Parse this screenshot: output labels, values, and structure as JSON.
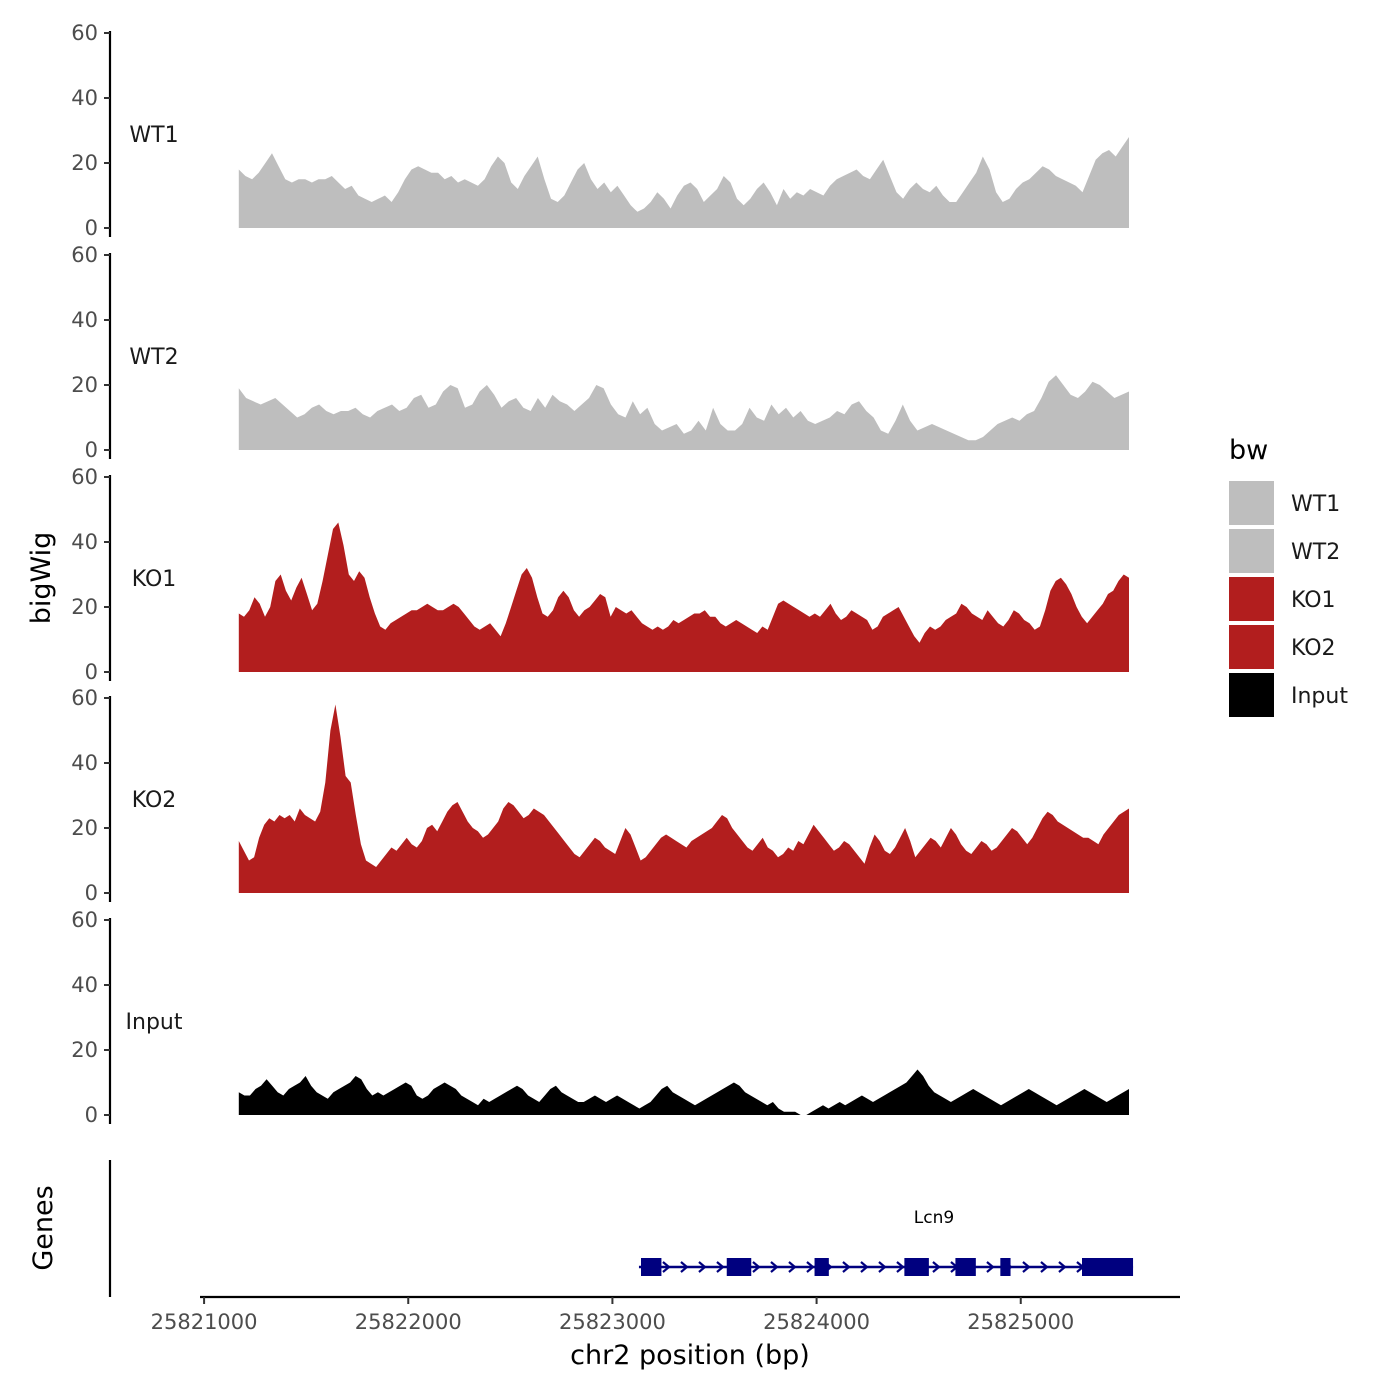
{
  "chart_data": {
    "type": "area",
    "xlabel": "chr2 position (bp)",
    "ylabel": "bigWig",
    "genes_label": "Genes",
    "xlim": [
      25820980,
      25825780
    ],
    "x_ticks": [
      25821000,
      25822000,
      25823000,
      25824000,
      25825000
    ],
    "x_tick_labels": [
      "25821000",
      "25822000",
      "25823000",
      "25824000",
      "25825000"
    ],
    "ylim": [
      0,
      60
    ],
    "y_ticks": [
      0,
      20,
      40,
      60
    ],
    "y_tick_labels": [
      "0",
      "20",
      "40",
      "60"
    ],
    "x_start": 25821170,
    "x_end": 25825530,
    "legend": {
      "title": "bw",
      "position": "right",
      "entries": [
        {
          "name": "WT1",
          "color": "#bebebe"
        },
        {
          "name": "WT2",
          "color": "#bebebe"
        },
        {
          "name": "KO1",
          "color": "#b21e1e"
        },
        {
          "name": "KO2",
          "color": "#b21e1e"
        },
        {
          "name": "Input",
          "color": "#000000"
        }
      ]
    },
    "series": [
      {
        "name": "WT1",
        "color": "#bebebe",
        "values": [
          18,
          16,
          15,
          17,
          20,
          23,
          19,
          15,
          14,
          15,
          15,
          14,
          15,
          15,
          16,
          14,
          12,
          13,
          10,
          9,
          8,
          9,
          10,
          8,
          11,
          15,
          18,
          19,
          18,
          17,
          17,
          15,
          16,
          14,
          15,
          14,
          13,
          15,
          19,
          22,
          20,
          14,
          12,
          16,
          19,
          22,
          15,
          9,
          8,
          10,
          14,
          18,
          20,
          15,
          12,
          14,
          11,
          13,
          10,
          7,
          5,
          6,
          8,
          11,
          9,
          6,
          10,
          13,
          14,
          12,
          8,
          10,
          12,
          16,
          14,
          9,
          7,
          9,
          12,
          14,
          11,
          7,
          12,
          9,
          11,
          10,
          12,
          11,
          10,
          13,
          15,
          16,
          17,
          18,
          16,
          15,
          18,
          21,
          16,
          11,
          9,
          12,
          14,
          12,
          11,
          13,
          10,
          8,
          8,
          11,
          14,
          17,
          22,
          18,
          11,
          8,
          9,
          12,
          14,
          15,
          17,
          19,
          18,
          16,
          15,
          14,
          13,
          11,
          16,
          21,
          23,
          24,
          22,
          25,
          28
        ]
      },
      {
        "name": "WT2",
        "color": "#bebebe",
        "values": [
          19,
          16,
          15,
          14,
          15,
          16,
          14,
          12,
          10,
          11,
          13,
          14,
          12,
          11,
          12,
          12,
          13,
          11,
          10,
          12,
          13,
          14,
          12,
          13,
          16,
          17,
          13,
          14,
          18,
          20,
          19,
          13,
          14,
          18,
          20,
          17,
          13,
          15,
          16,
          13,
          12,
          16,
          13,
          17,
          15,
          14,
          12,
          14,
          16,
          20,
          19,
          14,
          11,
          10,
          15,
          11,
          13,
          8,
          6,
          7,
          8,
          5,
          6,
          9,
          6,
          13,
          8,
          6,
          6,
          8,
          13,
          10,
          9,
          14,
          11,
          13,
          10,
          12,
          9,
          8,
          9,
          10,
          12,
          11,
          14,
          15,
          12,
          10,
          6,
          5,
          9,
          14,
          9,
          6,
          7,
          8,
          7,
          6,
          5,
          4,
          3,
          3,
          4,
          6,
          8,
          9,
          10,
          9,
          11,
          12,
          16,
          21,
          23,
          20,
          17,
          16,
          18,
          21,
          20,
          18,
          16,
          17,
          18
        ]
      },
      {
        "name": "KO1",
        "color": "#b21e1e",
        "values": [
          18,
          17,
          19,
          23,
          21,
          17,
          20,
          28,
          30,
          25,
          22,
          26,
          29,
          24,
          19,
          21,
          28,
          36,
          44,
          46,
          39,
          30,
          28,
          31,
          29,
          23,
          18,
          14,
          13,
          15,
          16,
          17,
          18,
          19,
          19,
          20,
          21,
          20,
          19,
          19,
          20,
          21,
          20,
          18,
          16,
          14,
          13,
          14,
          15,
          13,
          11,
          15,
          20,
          25,
          30,
          32,
          29,
          23,
          18,
          17,
          19,
          23,
          25,
          23,
          19,
          17,
          19,
          20,
          22,
          24,
          23,
          17,
          20,
          19,
          18,
          19,
          17,
          15,
          14,
          13,
          14,
          13,
          14,
          16,
          15,
          16,
          17,
          18,
          18,
          19,
          17,
          17,
          15,
          14,
          15,
          16,
          15,
          14,
          13,
          12,
          14,
          13,
          17,
          21,
          22,
          21,
          20,
          19,
          18,
          17,
          18,
          17,
          19,
          21,
          18,
          16,
          17,
          19,
          18,
          17,
          16,
          13,
          14,
          17,
          18,
          19,
          20,
          17,
          14,
          11,
          9,
          12,
          14,
          13,
          14,
          16,
          17,
          18,
          21,
          20,
          18,
          17,
          16,
          19,
          17,
          15,
          14,
          16,
          19,
          18,
          16,
          15,
          13,
          14,
          19,
          25,
          28,
          29,
          27,
          24,
          20,
          17,
          15,
          17,
          19,
          21,
          24,
          25,
          28,
          30,
          29
        ]
      },
      {
        "name": "KO2",
        "color": "#b21e1e",
        "values": [
          16,
          13,
          10,
          11,
          17,
          21,
          23,
          22,
          24,
          23,
          24,
          22,
          26,
          24,
          23,
          22,
          25,
          34,
          50,
          58,
          48,
          36,
          34,
          24,
          15,
          10,
          9,
          8,
          10,
          12,
          14,
          13,
          15,
          17,
          15,
          14,
          16,
          20,
          21,
          19,
          22,
          25,
          27,
          28,
          25,
          22,
          20,
          19,
          17,
          18,
          20,
          22,
          26,
          28,
          27,
          25,
          23,
          24,
          26,
          25,
          24,
          22,
          20,
          18,
          16,
          14,
          12,
          11,
          13,
          15,
          17,
          16,
          14,
          13,
          12,
          16,
          20,
          18,
          14,
          10,
          11,
          13,
          15,
          17,
          18,
          17,
          16,
          15,
          14,
          16,
          17,
          18,
          19,
          20,
          22,
          24,
          23,
          20,
          18,
          16,
          14,
          13,
          15,
          17,
          14,
          13,
          11,
          12,
          14,
          13,
          16,
          15,
          18,
          21,
          19,
          17,
          15,
          13,
          14,
          16,
          15,
          13,
          11,
          9,
          14,
          18,
          16,
          13,
          12,
          14,
          17,
          20,
          16,
          11,
          13,
          15,
          17,
          16,
          14,
          17,
          20,
          18,
          15,
          13,
          12,
          14,
          16,
          15,
          13,
          14,
          16,
          18,
          20,
          19,
          17,
          15,
          17,
          20,
          23,
          25,
          24,
          22,
          21,
          20,
          19,
          18,
          17,
          17,
          16,
          15,
          18,
          20,
          22,
          24,
          25,
          26
        ]
      },
      {
        "name": "Input",
        "color": "#000000",
        "values": [
          7,
          6,
          6,
          8,
          9,
          11,
          9,
          7,
          6,
          8,
          9,
          10,
          12,
          9,
          7,
          6,
          5,
          7,
          8,
          9,
          10,
          12,
          11,
          8,
          6,
          7,
          6,
          7,
          8,
          9,
          10,
          9,
          6,
          5,
          6,
          8,
          9,
          10,
          9,
          8,
          6,
          5,
          4,
          3,
          5,
          4,
          5,
          6,
          7,
          8,
          9,
          8,
          6,
          5,
          4,
          6,
          8,
          9,
          7,
          6,
          5,
          4,
          4,
          5,
          6,
          5,
          4,
          5,
          6,
          5,
          4,
          3,
          2,
          3,
          4,
          6,
          8,
          9,
          7,
          6,
          5,
          4,
          3,
          4,
          5,
          6,
          7,
          8,
          9,
          10,
          9,
          7,
          6,
          5,
          4,
          3,
          4,
          2,
          1,
          1,
          1,
          0,
          0,
          1,
          2,
          3,
          2,
          3,
          4,
          3,
          4,
          5,
          6,
          5,
          4,
          5,
          6,
          7,
          8,
          9,
          10,
          12,
          14,
          12,
          9,
          7,
          6,
          5,
          4,
          5,
          6,
          7,
          8,
          7,
          6,
          5,
          4,
          3,
          4,
          5,
          6,
          7,
          8,
          7,
          6,
          5,
          4,
          3,
          4,
          5,
          6,
          7,
          8,
          7,
          6,
          5,
          4,
          5,
          6,
          7,
          8
        ]
      }
    ],
    "genes": [
      {
        "name": "Lcn9",
        "strand": "+",
        "start": 25823130,
        "end": 25825550,
        "exons": [
          [
            25823140,
            25823240
          ],
          [
            25823560,
            25823680
          ],
          [
            25823990,
            25824060
          ],
          [
            25824430,
            25824550
          ],
          [
            25824680,
            25824780
          ],
          [
            25824900,
            25824950
          ],
          [
            25825300,
            25825550
          ]
        ]
      }
    ]
  }
}
